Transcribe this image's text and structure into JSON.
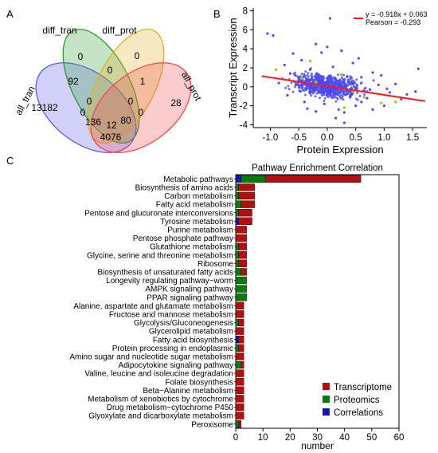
{
  "panel_labels": {
    "a": "A",
    "b": "B",
    "c": "C"
  },
  "chart_data": [
    {
      "type": "venn",
      "sets": [
        {
          "name": "all_tran",
          "color": "#5b5bf5"
        },
        {
          "name": "diff_tran",
          "color": "#2e9a2e"
        },
        {
          "name": "diff_prot",
          "color": "#e0b020"
        },
        {
          "name": "all_prot",
          "color": "#f04848"
        }
      ],
      "regions": [
        {
          "sets": [
            "all_tran"
          ],
          "value": 13182
        },
        {
          "sets": [
            "diff_tran"
          ],
          "value": 0
        },
        {
          "sets": [
            "diff_prot"
          ],
          "value": 0
        },
        {
          "sets": [
            "all_prot"
          ],
          "value": 28
        },
        {
          "sets": [
            "all_tran",
            "diff_tran"
          ],
          "value": 92
        },
        {
          "sets": [
            "diff_tran",
            "diff_prot"
          ],
          "value": 0
        },
        {
          "sets": [
            "diff_prot",
            "all_prot"
          ],
          "value": 1
        },
        {
          "sets": [
            "all_tran",
            "diff_tran",
            "diff_prot"
          ],
          "value": 0
        },
        {
          "sets": [
            "diff_tran",
            "diff_prot",
            "all_prot"
          ],
          "value": 0
        },
        {
          "sets": [
            "all_tran",
            "diff_tran",
            "diff_prot",
            "all_prot"
          ],
          "value": 12
        },
        {
          "sets": [
            "all_tran",
            "diff_tran",
            "all_prot"
          ],
          "value": 136
        },
        {
          "sets": [
            "all_tran",
            "diff_prot",
            "all_prot"
          ],
          "value": 80
        },
        {
          "sets": [
            "all_tran",
            "all_prot"
          ],
          "value": 4076
        },
        {
          "sets": [
            "all_tran",
            "diff_prot"
          ],
          "value": 0
        },
        {
          "sets": [
            "diff_tran",
            "all_prot"
          ],
          "value": 0
        }
      ]
    },
    {
      "type": "scatter",
      "xlabel": "Protein Expression",
      "ylabel": "Transcript Expression",
      "xlim": [
        -1.3,
        1.75
      ],
      "ylim": [
        -4.3,
        8.3
      ],
      "xticks": [
        -1.0,
        -0.5,
        0.0,
        0.5,
        1.0,
        1.5
      ],
      "xtick_labels": [
        "-1.0",
        "-0.5",
        "0.0",
        "0.5",
        "1.0",
        "1.5"
      ],
      "yticks": [
        -4,
        -2,
        0,
        2,
        4,
        6,
        8
      ],
      "ytick_labels": [
        "-4",
        "-2",
        "0",
        "2",
        "4",
        "6",
        "8"
      ],
      "point_color": "#4a4af0",
      "highlight_color": "#9acd32",
      "line_color": "#ff1a1a",
      "fit": {
        "slope": -0.918,
        "intercept": 0.063
      },
      "annotations": [
        "y = -0.918x + 0.063",
        "Pearson = -0.293"
      ],
      "points": [
        [
          -1.05,
          5.6
        ],
        [
          -0.95,
          5.4
        ],
        [
          -0.6,
          3.5
        ],
        [
          -0.45,
          2.8
        ],
        [
          -0.1,
          3.6
        ],
        [
          0.05,
          7.2
        ],
        [
          -0.2,
          4.5
        ],
        [
          0.25,
          3.8
        ],
        [
          0.45,
          2.5
        ],
        [
          0.6,
          1.0
        ],
        [
          0.8,
          1.5
        ],
        [
          1.2,
          0.3
        ],
        [
          1.6,
          1.9
        ],
        [
          1.55,
          -0.5
        ],
        [
          1.3,
          -1.3
        ],
        [
          1.0,
          -2.0
        ],
        [
          0.8,
          -2.4
        ],
        [
          0.5,
          -2.0
        ],
        [
          0.3,
          -2.7
        ],
        [
          0.15,
          -3.3
        ],
        [
          0.3,
          -3.8
        ],
        [
          -0.2,
          -2.6
        ],
        [
          -0.4,
          -1.6
        ],
        [
          -0.7,
          -0.9
        ],
        [
          -0.85,
          0.4
        ],
        [
          -0.65,
          1.4
        ],
        [
          -0.3,
          1.8
        ],
        [
          0.1,
          2.1
        ],
        [
          0.35,
          1.1
        ],
        [
          0.9,
          0.2
        ],
        [
          1.1,
          -0.6
        ],
        [
          0.7,
          -1.2
        ],
        [
          -0.05,
          -1.8
        ],
        [
          -0.55,
          0.2
        ],
        [
          1.4,
          -0.8
        ],
        [
          0.95,
          1.2
        ],
        [
          -0.75,
          2.3
        ],
        [
          0.55,
          3.0
        ],
        [
          -0.35,
          -2.3
        ],
        [
          0.6,
          -1.6
        ],
        [
          0.0,
          4.2
        ],
        [
          0.2,
          -2.4
        ],
        [
          -0.15,
          1.3
        ],
        [
          0.4,
          -1.1
        ],
        [
          1.05,
          -0.2
        ],
        [
          -0.5,
          1.0
        ],
        [
          0.15,
          0.8
        ],
        [
          0.75,
          -0.3
        ],
        [
          -0.25,
          -0.4
        ],
        [
          0.45,
          0.3
        ]
      ],
      "highlight_points": [
        [
          -0.9,
          1.8
        ],
        [
          -0.45,
          0.9
        ],
        [
          -0.3,
          2.7
        ],
        [
          0.25,
          1.3
        ],
        [
          0.45,
          -0.5
        ],
        [
          0.65,
          -1.1
        ],
        [
          0.95,
          -1.7
        ],
        [
          1.2,
          -1.6
        ],
        [
          0.3,
          -2.2
        ],
        [
          -0.2,
          0.5
        ]
      ]
    },
    {
      "type": "bar",
      "stacked": true,
      "orientation": "horizontal",
      "title": "Pathway Enrichment Correlation",
      "xlabel": "number",
      "xlim": [
        0,
        60
      ],
      "xticks": [
        0,
        10,
        20,
        30,
        40,
        50,
        60
      ],
      "legend_position": "bottom-right",
      "categories": [
        "Metabolic pathways",
        "Biosynthesis of amino acids",
        "Carbon metabolism",
        "Fatty acid metabolism",
        "Pentose and glucuronate interconversions",
        "Tyrosine metabolism",
        "Purine metabolism",
        "Pentose phosphate pathway",
        "Glutathione metabolism",
        "Glycine, serine and threonine metabolism",
        "Ribosome",
        "Biosynthesis of unsaturated fatty acids",
        "Longevity regulating pathway−worm",
        "AMPK signaling pathway",
        "PPAR signaling pathway",
        "Alanine, aspartate and glutamate metabolism",
        "Fructose and mannose metabolism",
        "Glycolysis/Gluconeogenesis",
        "Glycerolipid metabolism",
        "Fatty acid biosynthesis",
        "Protein processing in endoplasmic",
        "Amino sugar and nucleotide sugar metabolism",
        "Adipocytokine signaling pathway",
        "Valine, leucine and isoleucine degradation",
        "Folate biosynthesis",
        "Beta−Alanine metabolism",
        "Metabolism of xenobiotics by cytochrome",
        "Drug metabolism−cytochrome P450",
        "Glyoxylate and dicarboxylate metabolism",
        "Peroxisome"
      ],
      "series": [
        {
          "name": "Correlations",
          "color": "#1515a8",
          "values": [
            2,
            0,
            0,
            0,
            0,
            1,
            0,
            0,
            0,
            0,
            0,
            0,
            0,
            0,
            0,
            0,
            0,
            0,
            0,
            1,
            0,
            0,
            0,
            0,
            0,
            0,
            0,
            0,
            0,
            0
          ]
        },
        {
          "name": "Proteomics",
          "color": "#0a7a0a",
          "values": [
            9,
            1,
            1,
            2,
            1,
            0,
            0,
            0,
            1,
            1,
            1,
            2,
            4,
            4,
            4,
            0,
            0,
            1,
            0,
            0,
            1,
            0,
            2,
            0,
            0,
            0,
            0,
            0,
            0,
            1
          ]
        },
        {
          "name": "Transcriptome",
          "color": "#b01010",
          "values": [
            35,
            6,
            6,
            5,
            5,
            5,
            4,
            4,
            3,
            3,
            3,
            2,
            0,
            0,
            0,
            3,
            3,
            2,
            3,
            2,
            2,
            3,
            1,
            3,
            3,
            3,
            3,
            3,
            3,
            1
          ]
        }
      ],
      "legend_order": [
        "Transcriptome",
        "Proteomics",
        "Correlations"
      ]
    }
  ]
}
